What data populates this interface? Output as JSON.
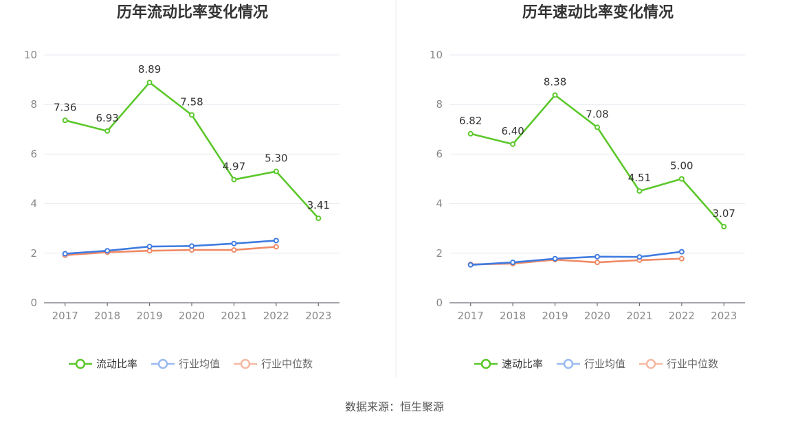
{
  "source_text": "数据来源：恒生聚源",
  "colors": {
    "main": "#5bc72a",
    "avg": "#3f7be0",
    "median": "#f08a66",
    "avg_legend": "#9bbaf0",
    "median_legend": "#f7b9a3"
  },
  "chart_data": [
    {
      "type": "line",
      "title": "历年流动比率变化情况",
      "categories": [
        "2017",
        "2018",
        "2019",
        "2020",
        "2021",
        "2022",
        "2023"
      ],
      "ylim": [
        0,
        10
      ],
      "yticks": [
        0,
        2,
        4,
        6,
        8,
        10
      ],
      "grid": true,
      "legend_position": "bottom",
      "series": [
        {
          "name": "流动比率",
          "values": [
            7.36,
            6.93,
            8.89,
            7.58,
            4.97,
            5.3,
            3.41
          ],
          "labels": [
            "7.36",
            "6.93",
            "8.89",
            "7.58",
            "4.97",
            "5.30",
            "3.41"
          ]
        },
        {
          "name": "行业均值",
          "values": [
            1.98,
            2.1,
            2.27,
            2.29,
            2.39,
            2.51,
            null
          ]
        },
        {
          "name": "行业中位数",
          "values": [
            1.92,
            2.04,
            2.1,
            2.13,
            2.13,
            2.26,
            null
          ]
        }
      ]
    },
    {
      "type": "line",
      "title": "历年速动比率变化情况",
      "categories": [
        "2017",
        "2018",
        "2019",
        "2020",
        "2021",
        "2022",
        "2023"
      ],
      "ylim": [
        0,
        10
      ],
      "yticks": [
        0,
        2,
        4,
        6,
        8,
        10
      ],
      "grid": true,
      "legend_position": "bottom",
      "series": [
        {
          "name": "速动比率",
          "values": [
            6.82,
            6.4,
            8.38,
            7.08,
            4.51,
            5.0,
            3.07
          ],
          "labels": [
            "6.82",
            "6.40",
            "8.38",
            "7.08",
            "4.51",
            "5.00",
            "3.07"
          ]
        },
        {
          "name": "行业均值",
          "values": [
            1.53,
            1.63,
            1.78,
            1.86,
            1.85,
            2.06,
            null
          ]
        },
        {
          "name": "行业中位数",
          "values": [
            1.55,
            1.58,
            1.74,
            1.63,
            1.72,
            1.78,
            null
          ]
        }
      ]
    }
  ]
}
